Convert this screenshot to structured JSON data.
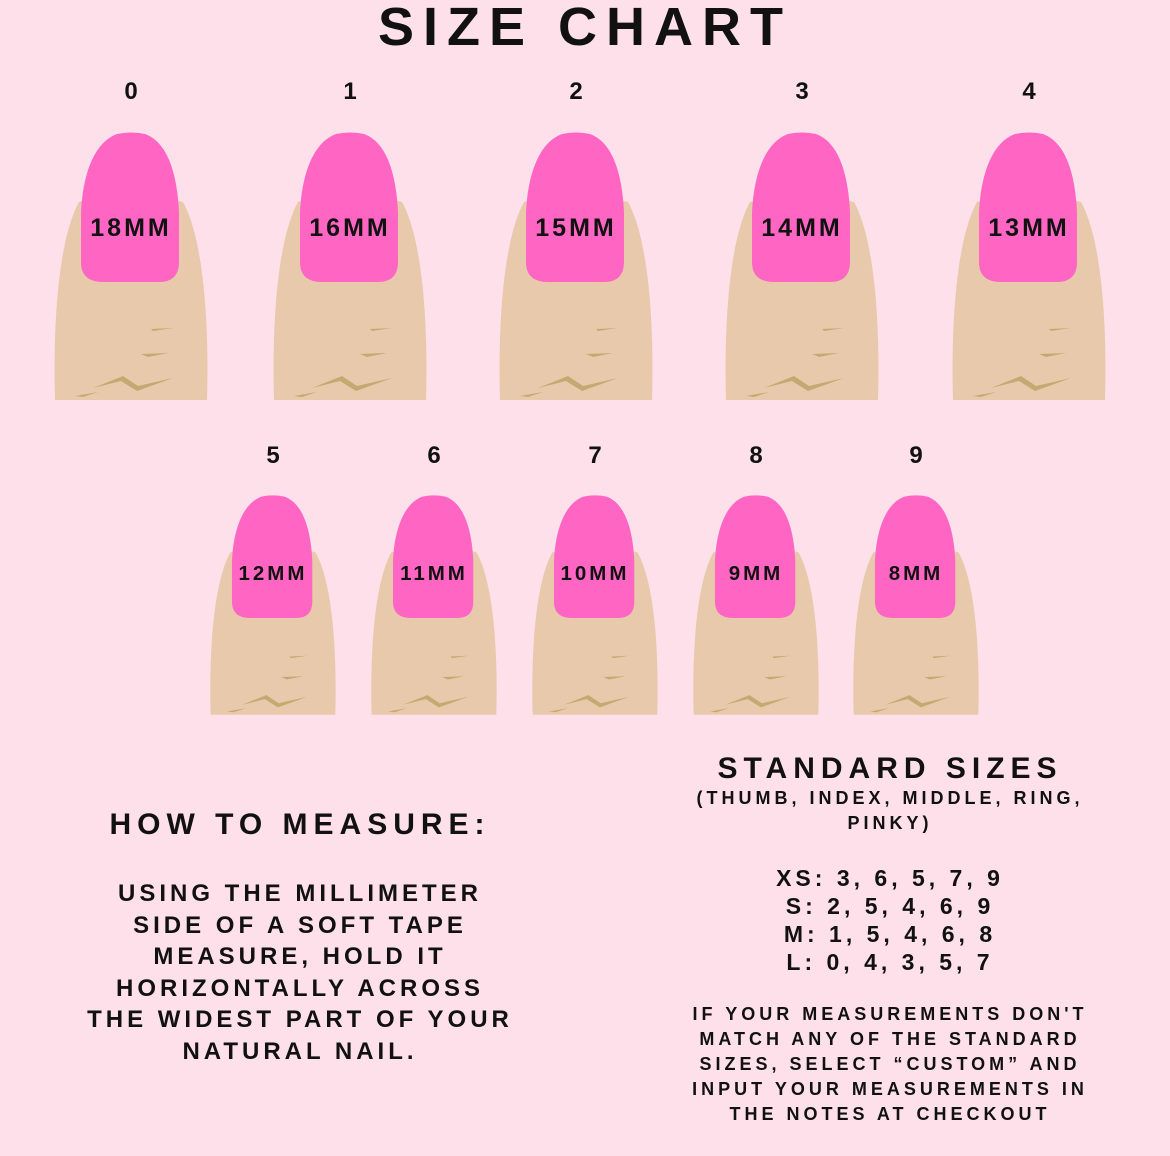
{
  "title": "SIZE CHART",
  "colors": {
    "background": "#fde0ea",
    "nail": "#ff66c4",
    "finger": "#e8c9ab",
    "crease": "#c4aa72"
  },
  "sizes": [
    {
      "size": "0",
      "width": "18MM"
    },
    {
      "size": "1",
      "width": "16MM"
    },
    {
      "size": "2",
      "width": "15MM"
    },
    {
      "size": "3",
      "width": "14MM"
    },
    {
      "size": "4",
      "width": "13MM"
    },
    {
      "size": "5",
      "width": "12MM"
    },
    {
      "size": "6",
      "width": "11MM"
    },
    {
      "size": "7",
      "width": "10MM"
    },
    {
      "size": "8",
      "width": "9MM"
    },
    {
      "size": "9",
      "width": "8MM"
    }
  ],
  "how_to": {
    "heading": "HOW TO MEASURE:",
    "lines": [
      "USING THE MILLIMETER",
      "SIDE OF A SOFT TAPE",
      "MEASURE, HOLD IT",
      "HORIZONTALLY ACROSS",
      "THE WIDEST PART OF YOUR",
      "NATURAL NAIL."
    ]
  },
  "standard": {
    "heading": "STANDARD SIZES",
    "sub": [
      "(THUMB, INDEX, MIDDLE, RING,",
      "PINKY)"
    ],
    "rows": [
      "XS: 3, 6, 5, 7, 9",
      "S: 2, 5, 4, 6, 9",
      "M: 1, 5, 4, 6, 8",
      "L: 0, 4, 3, 5, 7"
    ],
    "note": [
      "IF YOUR MEASUREMENTS DON'T",
      "MATCH ANY OF THE STANDARD",
      "SIZES, SELECT “CUSTOM” AND",
      "INPUT YOUR MEASUREMENTS IN",
      "THE NOTES AT CHECKOUT"
    ]
  }
}
